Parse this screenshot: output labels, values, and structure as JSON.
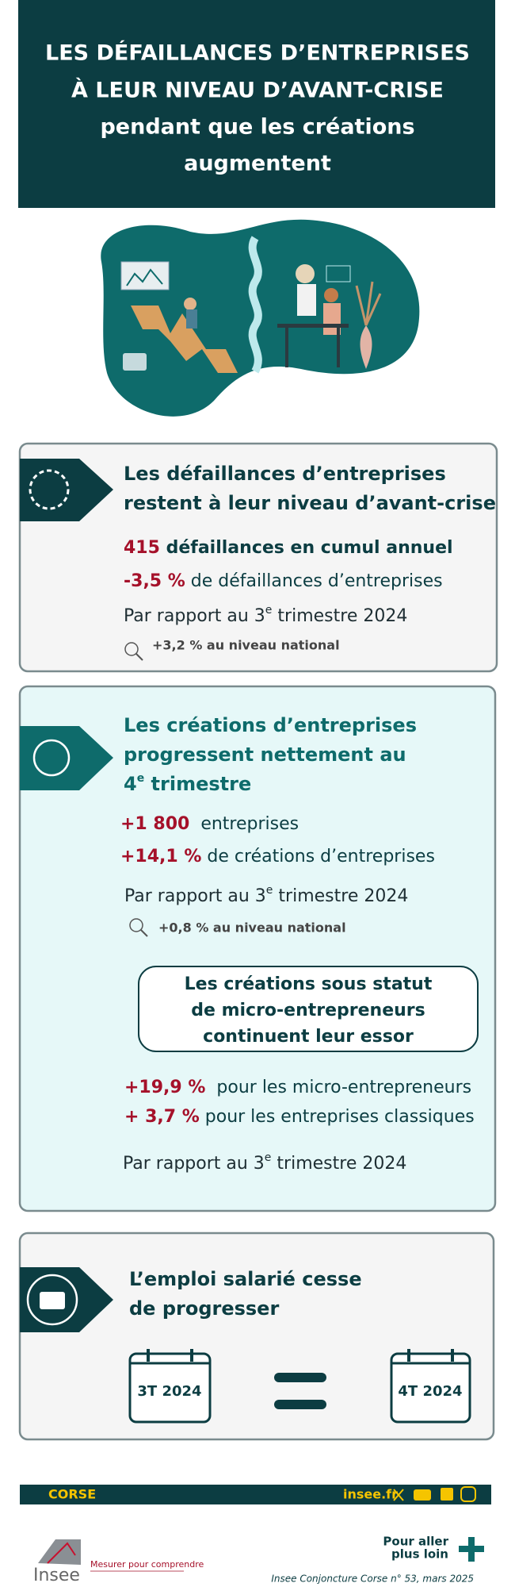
{
  "header": {
    "title_lines": [
      "LES DÉFAILLANCES D’ENTREPRISES",
      "À LEUR NIVEAU D’AVANT-CRISE",
      "pendant que les créations",
      "augmentent"
    ]
  },
  "sections": [
    {
      "heading_lines": [
        "Les défaillances d’entreprises",
        "restent à leur niveau d’avant-crise"
      ],
      "stats": [
        {
          "value": "415",
          "text": " défaillances en cumul annuel"
        },
        {
          "value": "-3,5 %",
          "text": " de défaillances d’entreprises"
        }
      ],
      "comparison": {
        "before": "Par rapport au 3",
        "sup": "e",
        "after": " trimestre 2024"
      },
      "national": "+3,2 % au niveau national"
    },
    {
      "heading_lines": [
        "Les créations d’entreprises",
        "progressent nettement au"
      ],
      "heading_last": {
        "before": "4",
        "sup": "e",
        "after": " trimestre"
      },
      "stats": [
        {
          "value": "+1 800",
          "text": "  entreprises"
        },
        {
          "value": "+14,1 %",
          "text": " de créations d’entreprises"
        }
      ],
      "comparison": {
        "before": "Par rapport au 3",
        "sup": "e",
        "after": " trimestre 2024"
      },
      "national": "+0,8 % au niveau national",
      "callout_lines": [
        "Les créations sous statut",
        "de micro-entrepreneurs",
        "continuent leur essor"
      ],
      "stats2": [
        {
          "value": "+19,9 %",
          "text": "  pour les micro-entrepreneurs"
        },
        {
          "value": "+ 3,7 %",
          "text": " pour les entreprises classiques"
        }
      ],
      "comparison2": {
        "before": "Par rapport au 3",
        "sup": "e",
        "after": " trimestre 2024"
      }
    },
    {
      "heading_lines": [
        "L’emploi salarié cesse",
        "de progresser"
      ],
      "calendars": [
        "3T 2024",
        "4T 2024"
      ]
    }
  ],
  "footer": {
    "region": "CORSE",
    "site": "insee.fr",
    "more_lines": [
      "Pour aller",
      "plus loin"
    ],
    "logo": "Insee",
    "tagline": "Mesurer pour comprendre",
    "source": "Insee Conjoncture Corse n° 53, mars 2025"
  }
}
